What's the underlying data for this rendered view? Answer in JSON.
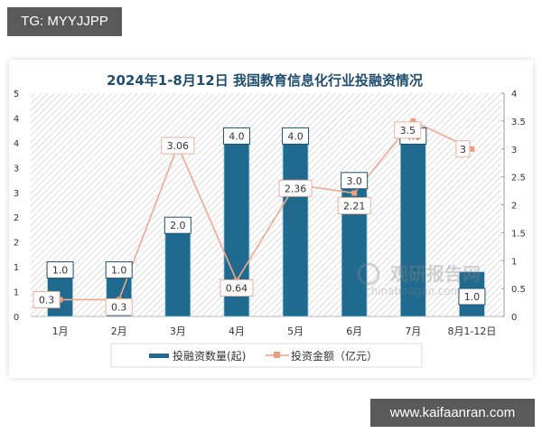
{
  "watermark_top": "TG: MYYJJPP",
  "watermark_bottom": "www.kaifaanran.com",
  "source_watermark": {
    "cn": "观研报告网",
    "en": "chinabaogao.com"
  },
  "colors": {
    "bar": "#1f6a8e",
    "line": "#f0a890",
    "marker": "#e8a07c",
    "title": "#1f4e6e",
    "hatch": "#d0d0d0"
  },
  "chart_data": {
    "type": "bar",
    "title": "2024年1-8月12日 我国教育信息化行业投融资情况",
    "categories": [
      "1月",
      "2月",
      "3月",
      "4月",
      "5月",
      "6月",
      "7月",
      "8月1-12日"
    ],
    "series": [
      {
        "name": "投融资数量(起)",
        "type": "bar",
        "axis": "left",
        "values": [
          1.0,
          1.0,
          2.0,
          4.0,
          4.0,
          3.0,
          4.0,
          1.0
        ],
        "labels": [
          "1.0",
          "1.0",
          "2.0",
          "4.0",
          "4.0",
          "3.0",
          "4.0",
          "1.0"
        ]
      },
      {
        "name": "投资金额（亿元）",
        "type": "line",
        "axis": "right",
        "values": [
          0.3,
          0.3,
          3.06,
          0.64,
          2.36,
          2.21,
          3.5,
          3
        ],
        "labels": [
          "0.3",
          "0.3",
          "3.06",
          "0.64",
          "2.36",
          "2.21",
          "3.5",
          "3"
        ]
      }
    ],
    "left_axis": {
      "ylim": [
        0,
        5
      ],
      "tick_labels": [
        "0",
        "1",
        "1",
        "2",
        "2",
        "3",
        "3",
        "4",
        "4",
        "5"
      ]
    },
    "right_axis": {
      "ylim": [
        0,
        4
      ],
      "tick_labels": [
        "0",
        "0.5",
        "1",
        "1.5",
        "2",
        "2.5",
        "3",
        "3.5",
        "4"
      ]
    },
    "legend_position": "bottom",
    "grid": false,
    "xlabel": "",
    "ylabel": ""
  }
}
